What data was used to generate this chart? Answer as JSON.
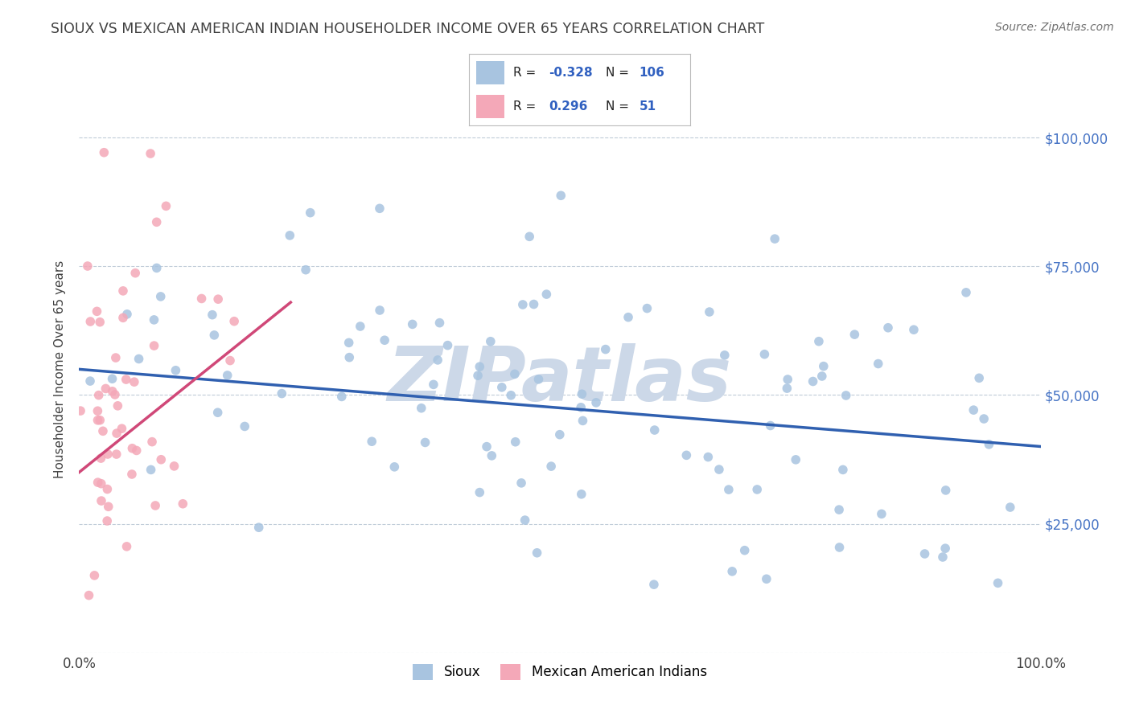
{
  "title": "SIOUX VS MEXICAN AMERICAN INDIAN HOUSEHOLDER INCOME OVER 65 YEARS CORRELATION CHART",
  "source_text": "Source: ZipAtlas.com",
  "ylabel": "Householder Income Over 65 years",
  "xlim": [
    0.0,
    1.0
  ],
  "ylim": [
    0,
    110000
  ],
  "yticks": [
    0,
    25000,
    50000,
    75000,
    100000
  ],
  "ytick_labels": [
    "",
    "$25,000",
    "$50,000",
    "$75,000",
    "$100,000"
  ],
  "xtick_labels": [
    "0.0%",
    "100.0%"
  ],
  "legend_labels": [
    "Sioux",
    "Mexican American Indians"
  ],
  "r_sioux": -0.328,
  "n_sioux": 106,
  "r_mai": 0.296,
  "n_mai": 51,
  "color_sioux": "#a8c4e0",
  "color_mai": "#f4a8b8",
  "color_sioux_line": "#3060b0",
  "color_mai_line": "#d04878",
  "watermark": "ZIPatlas",
  "watermark_color": "#ccd8e8",
  "background_color": "#ffffff",
  "title_color": "#404040",
  "source_color": "#707070",
  "sioux_line_y0": 55000,
  "sioux_line_y1": 40000,
  "mai_line_x0": 0.0,
  "mai_line_y0": 35000,
  "mai_line_x1": 0.22,
  "mai_line_y1": 68000
}
